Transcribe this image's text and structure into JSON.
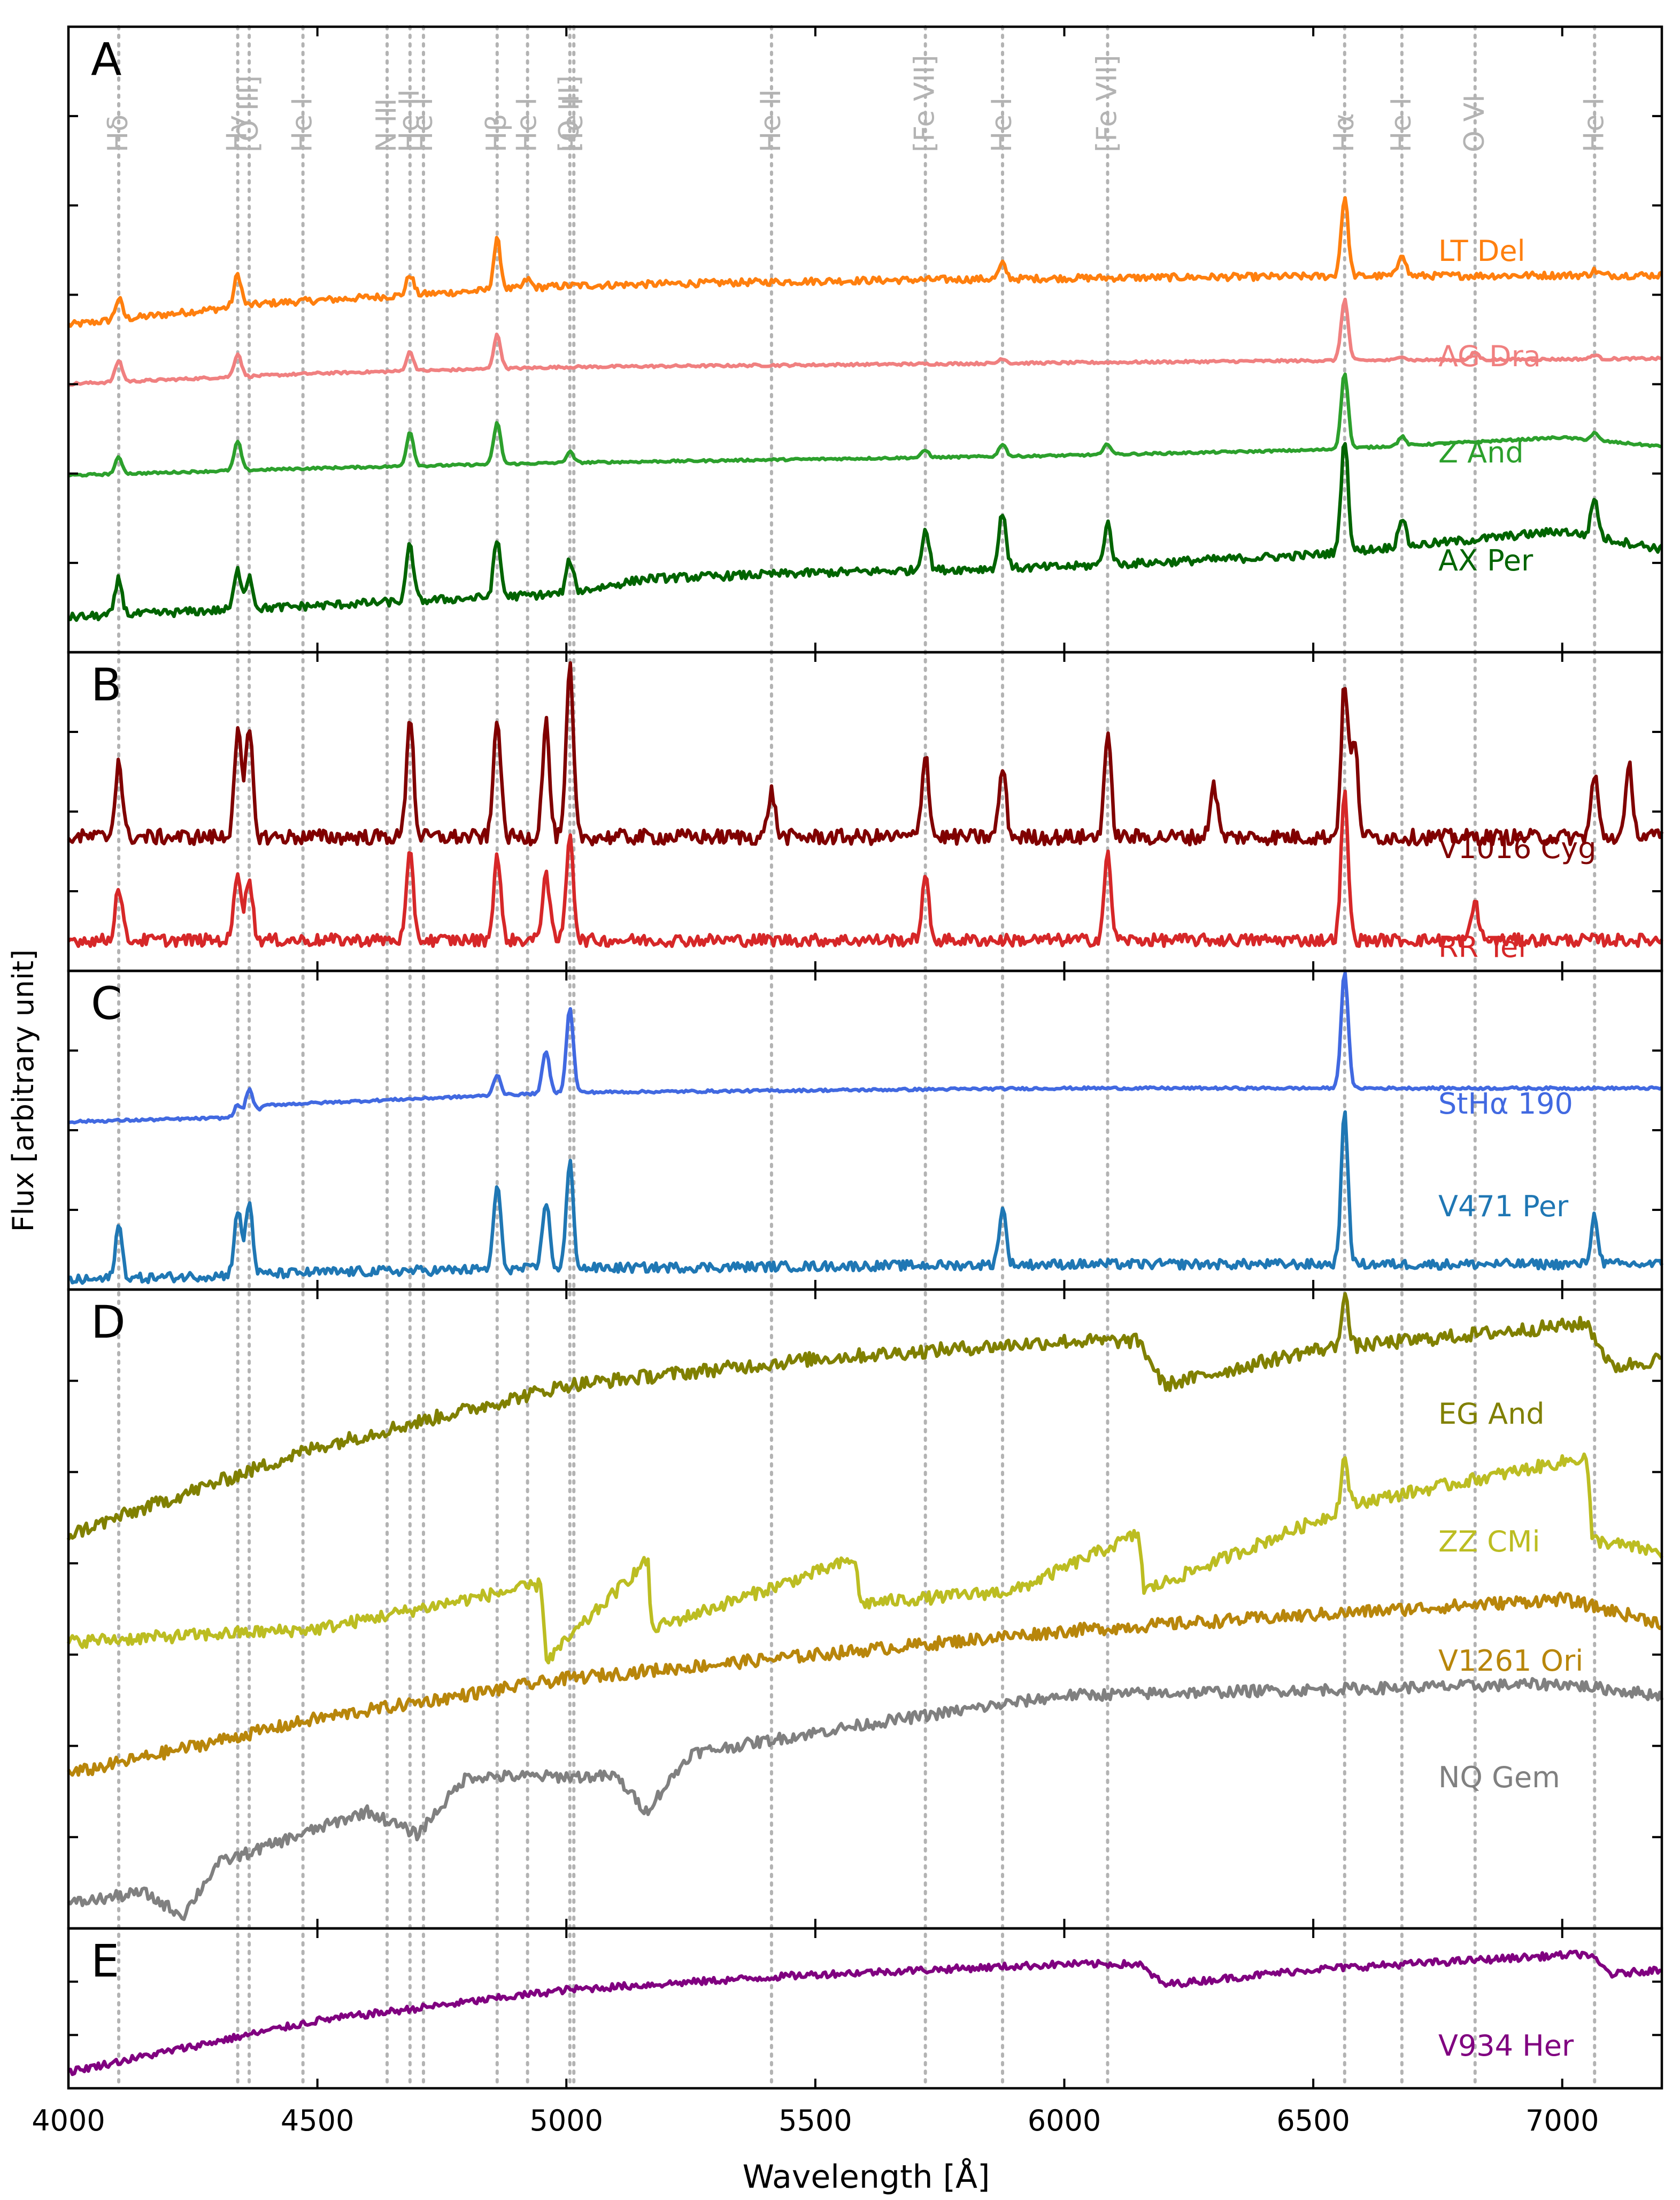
{
  "chart_data": {
    "type": "line",
    "xlabel": "Wavelength [Å]",
    "ylabel": "Flux [arbitrary unit]",
    "xlim": [
      4000,
      7200
    ],
    "xticks": [
      4000,
      4500,
      5000,
      5500,
      6000,
      6500,
      7000
    ],
    "xtick_labels": [
      "4000",
      "4500",
      "5000",
      "5500",
      "6000",
      "6500",
      "7000"
    ],
    "reference_lines": [
      {
        "label": "Hδ",
        "wavelength": 4101
      },
      {
        "label": "Hγ",
        "wavelength": 4340
      },
      {
        "label": "[O III]",
        "wavelength": 4363
      },
      {
        "label": "He I",
        "wavelength": 4471
      },
      {
        "label": "N III",
        "wavelength": 4640
      },
      {
        "label": "He II",
        "wavelength": 4686
      },
      {
        "label": "He I",
        "wavelength": 4713
      },
      {
        "label": "Hβ",
        "wavelength": 4861
      },
      {
        "label": "He I",
        "wavelength": 4922
      },
      {
        "label": "He I",
        "wavelength": 5015
      },
      {
        "label": "[O III]",
        "wavelength": 5007
      },
      {
        "label": "He II",
        "wavelength": 5412
      },
      {
        "label": "[Fe VII]",
        "wavelength": 5721
      },
      {
        "label": "He I",
        "wavelength": 5876
      },
      {
        "label": "[Fe VII]",
        "wavelength": 6087
      },
      {
        "label": "Hα",
        "wavelength": 6563
      },
      {
        "label": "He I",
        "wavelength": 6678
      },
      {
        "label": "O VI",
        "wavelength": 6825
      },
      {
        "label": "He I",
        "wavelength": 7065
      }
    ],
    "panels": [
      {
        "label": "A",
        "series": [
          {
            "name": "LT Del",
            "color": "#ff7f0e",
            "continuum": [
              [
                4000,
                3.25
              ],
              [
                4400,
                3.62
              ],
              [
                5000,
                3.92
              ],
              [
                5500,
                4.0
              ],
              [
                6000,
                4.05
              ],
              [
                6500,
                4.08
              ],
              [
                7000,
                4.1
              ],
              [
                7200,
                4.1
              ]
            ],
            "emission": [
              [
                4101,
                0.35
              ],
              [
                4340,
                0.55
              ],
              [
                4686,
                0.35
              ],
              [
                4861,
                0.85
              ],
              [
                4922,
                0.15
              ],
              [
                5876,
                0.25
              ],
              [
                6563,
                1.35
              ],
              [
                6678,
                0.4
              ],
              [
                7065,
                0.08
              ]
            ],
            "noise": 0.06
          },
          {
            "name": "AG Dra",
            "color": "#f08080",
            "continuum": [
              [
                4000,
                2.6
              ],
              [
                4500,
                2.85
              ],
              [
                5000,
                3.0
              ],
              [
                5500,
                3.05
              ],
              [
                6000,
                3.1
              ],
              [
                6500,
                3.15
              ],
              [
                7200,
                3.2
              ]
            ],
            "emission": [
              [
                4101,
                0.5
              ],
              [
                4340,
                0.55
              ],
              [
                4686,
                0.45
              ],
              [
                4861,
                0.8
              ],
              [
                5876,
                0.12
              ],
              [
                6563,
                1.45
              ],
              [
                6678,
                0.1
              ],
              [
                6825,
                0.18
              ],
              [
                7065,
                0.1
              ]
            ],
            "noise": 0.03
          },
          {
            "name": "Z And",
            "color": "#2ca02c",
            "continuum": [
              [
                4000,
                1.75
              ],
              [
                4500,
                1.95
              ],
              [
                5000,
                2.1
              ],
              [
                5500,
                2.2
              ],
              [
                6000,
                2.3
              ],
              [
                6500,
                2.45
              ],
              [
                7000,
                2.8
              ],
              [
                7200,
                2.55
              ]
            ],
            "emission": [
              [
                4101,
                0.45
              ],
              [
                4340,
                0.8
              ],
              [
                4686,
                0.95
              ],
              [
                4861,
                1.15
              ],
              [
                5007,
                0.3
              ],
              [
                5721,
                0.2
              ],
              [
                5876,
                0.35
              ],
              [
                6087,
                0.3
              ],
              [
                6563,
                2.1
              ],
              [
                6678,
                0.25
              ],
              [
                7065,
                0.2
              ]
            ],
            "noise": 0.03
          },
          {
            "name": "AX Per",
            "color": "#006400",
            "continuum": [
              [
                4000,
                0.55
              ],
              [
                4500,
                0.75
              ],
              [
                5000,
                0.95
              ],
              [
                5160,
                1.2
              ],
              [
                5500,
                1.3
              ],
              [
                6000,
                1.4
              ],
              [
                6500,
                1.6
              ],
              [
                7000,
                2.0
              ],
              [
                7200,
                1.7
              ]
            ],
            "emission": [
              [
                4101,
                0.6
              ],
              [
                4340,
                0.65
              ],
              [
                4363,
                0.55
              ],
              [
                4686,
                0.95
              ],
              [
                4861,
                0.95
              ],
              [
                5007,
                0.55
              ],
              [
                5721,
                0.7
              ],
              [
                5876,
                0.95
              ],
              [
                6087,
                0.7
              ],
              [
                6563,
                1.9
              ],
              [
                6678,
                0.5
              ],
              [
                7065,
                0.65
              ]
            ],
            "noise": 0.07
          }
        ]
      },
      {
        "label": "B",
        "series": [
          {
            "name": "V1016 Cyg",
            "color": "#800000",
            "continuum": [
              [
                4000,
                1.7
              ],
              [
                7200,
                1.7
              ]
            ],
            "emission": [
              [
                4101,
                0.5
              ],
              [
                4340,
                0.7
              ],
              [
                4363,
                0.7
              ],
              [
                4686,
                0.8
              ],
              [
                4861,
                0.8
              ],
              [
                4959,
                0.75
              ],
              [
                5007,
                1.1
              ],
              [
                5412,
                0.3
              ],
              [
                5721,
                0.55
              ],
              [
                5876,
                0.45
              ],
              [
                6087,
                0.65
              ],
              [
                6300,
                0.35
              ],
              [
                6563,
                1.0
              ],
              [
                6583,
                0.6
              ],
              [
                7065,
                0.4
              ],
              [
                7135,
                0.45
              ]
            ],
            "noise": 0.05
          },
          {
            "name": "RR Tel",
            "color": "#d62728",
            "continuum": [
              [
                4000,
                0.7
              ],
              [
                7200,
                0.7
              ]
            ],
            "emission": [
              [
                4101,
                0.35
              ],
              [
                4340,
                0.45
              ],
              [
                4363,
                0.4
              ],
              [
                4686,
                0.55
              ],
              [
                4861,
                0.55
              ],
              [
                4959,
                0.45
              ],
              [
                5007,
                0.7
              ],
              [
                5721,
                0.4
              ],
              [
                6087,
                0.55
              ],
              [
                6563,
                0.95
              ],
              [
                6825,
                0.25
              ]
            ],
            "noise": 0.04
          }
        ]
      },
      {
        "label": "C",
        "series": [
          {
            "name": "StHα 190",
            "color": "#4169e1",
            "continuum": [
              [
                4000,
                2.1
              ],
              [
                4350,
                2.15
              ],
              [
                4400,
                2.3
              ],
              [
                5000,
                2.45
              ],
              [
                6000,
                2.5
              ],
              [
                7200,
                2.5
              ]
            ],
            "emission": [
              [
                4340,
                0.15
              ],
              [
                4363,
                0.3
              ],
              [
                4861,
                0.25
              ],
              [
                4959,
                0.5
              ],
              [
                5007,
                1.0
              ],
              [
                6563,
                1.4
              ]
            ],
            "noise": 0.015
          },
          {
            "name": "V471 Per",
            "color": "#1f77b4",
            "continuum": [
              [
                4000,
                0.9
              ],
              [
                4500,
                1.0
              ],
              [
                5000,
                1.05
              ],
              [
                6000,
                1.1
              ],
              [
                7200,
                1.1
              ]
            ],
            "emission": [
              [
                4101,
                0.65
              ],
              [
                4340,
                0.8
              ],
              [
                4363,
                0.9
              ],
              [
                4861,
                1.05
              ],
              [
                4959,
                0.85
              ],
              [
                5007,
                1.3
              ],
              [
                5876,
                0.7
              ],
              [
                6563,
                1.85
              ],
              [
                7065,
                0.6
              ]
            ],
            "noise": 0.06
          }
        ]
      },
      {
        "label": "D",
        "series": [
          {
            "name": "EG And",
            "color": "#808000",
            "continuum": [
              [
                4000,
                4.0
              ],
              [
                4500,
                4.5
              ],
              [
                5000,
                4.85
              ],
              [
                5500,
                5.0
              ],
              [
                6000,
                5.1
              ],
              [
                6150,
                5.1
              ],
              [
                6200,
                4.85
              ],
              [
                6500,
                5.05
              ],
              [
                7050,
                5.2
              ],
              [
                7100,
                4.95
              ],
              [
                7200,
                5.0
              ]
            ],
            "emission": [
              [
                6563,
                0.3
              ]
            ],
            "noise": 0.04
          },
          {
            "name": "ZZ CMi",
            "color": "#bcbd22",
            "continuum": [
              [
                4000,
                3.1
              ],
              [
                4500,
                3.2
              ],
              [
                4950,
                3.55
              ],
              [
                4960,
                2.95
              ],
              [
                5165,
                3.75
              ],
              [
                5170,
                3.2
              ],
              [
                5580,
                3.75
              ],
              [
                5590,
                3.4
              ],
              [
                5900,
                3.5
              ],
              [
                6150,
                3.95
              ],
              [
                6160,
                3.5
              ],
              [
                6600,
                4.2
              ],
              [
                7050,
                4.55
              ],
              [
                7060,
                3.9
              ],
              [
                7200,
                3.8
              ]
            ],
            "emission": [
              [
                6563,
                0.4
              ]
            ],
            "noise": 0.05
          },
          {
            "name": "V1261 Ori",
            "color": "#b8860b",
            "continuum": [
              [
                4000,
                1.9
              ],
              [
                4500,
                2.25
              ],
              [
                5000,
                2.5
              ],
              [
                5500,
                2.65
              ],
              [
                6000,
                2.8
              ],
              [
                6500,
                2.9
              ],
              [
                7000,
                3.0
              ],
              [
                7200,
                2.85
              ]
            ],
            "emission": [],
            "noise": 0.04
          },
          {
            "name": "NQ Gem",
            "color": "#808080",
            "continuum": [
              [
                4000,
                0.3
              ],
              [
                4150,
                0.4
              ],
              [
                4230,
                0.2
              ],
              [
                4300,
                0.65
              ],
              [
                4600,
                1.1
              ],
              [
                4700,
                0.9
              ],
              [
                4800,
                1.4
              ],
              [
                5100,
                1.4
              ],
              [
                5160,
                1.1
              ],
              [
                5250,
                1.6
              ],
              [
                5600,
                1.85
              ],
              [
                6000,
                2.1
              ],
              [
                6500,
                2.15
              ],
              [
                7000,
                2.2
              ],
              [
                7200,
                2.1
              ]
            ],
            "emission": [],
            "noise": 0.05
          }
        ]
      },
      {
        "label": "E",
        "series": [
          {
            "name": "V934 Her",
            "color": "#800080",
            "continuum": [
              [
                4000,
                0.3
              ],
              [
                4500,
                0.8
              ],
              [
                5000,
                1.1
              ],
              [
                5500,
                1.25
              ],
              [
                6000,
                1.35
              ],
              [
                6150,
                1.35
              ],
              [
                6200,
                1.15
              ],
              [
                6500,
                1.3
              ],
              [
                7050,
                1.45
              ],
              [
                7100,
                1.25
              ],
              [
                7200,
                1.3
              ]
            ],
            "emission": [],
            "noise": 0.035
          }
        ]
      }
    ]
  }
}
